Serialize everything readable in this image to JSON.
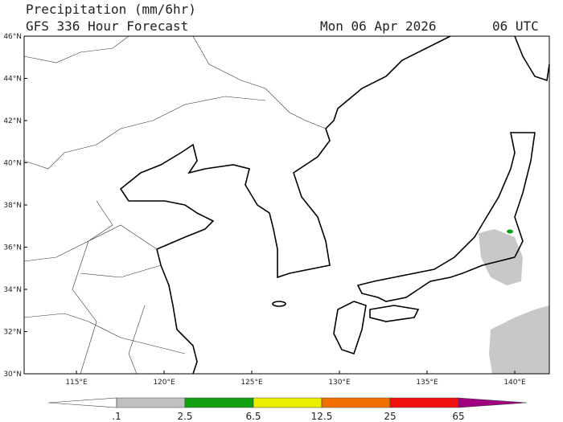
{
  "header": {
    "title": "Precipitation (mm/6hr)",
    "model": "GFS 336 Hour Forecast",
    "date": "Mon 06 Apr 2026",
    "time": "06 UTC"
  },
  "lat_labels": [
    "46°N",
    "44°N",
    "42°N",
    "40°N",
    "38°N",
    "36°N",
    "34°N",
    "32°N",
    "30°N"
  ],
  "lon_labels": [
    "115°E",
    "120°E",
    "125°E",
    "130°E",
    "135°E",
    "140°E"
  ],
  "colorbar": {
    "labels": [
      ".1",
      "2.5",
      "6.5",
      "12.5",
      "25",
      "65"
    ],
    "colors": [
      "#ffffff",
      "#c0c0c0",
      "#10a010",
      "#e8f000",
      "#f07000",
      "#f01010",
      "#a00080"
    ]
  }
}
